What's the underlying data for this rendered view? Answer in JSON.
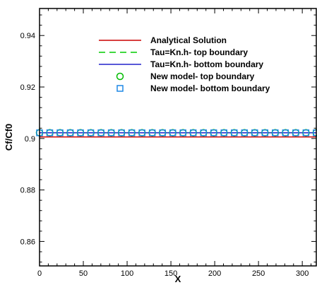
{
  "chart_data": {
    "type": "line",
    "xlabel": "X",
    "ylabel": "Cf/Cf0",
    "xlim": [
      0,
      316
    ],
    "ylim": [
      0.8505,
      0.9505
    ],
    "x_ticks": [
      0,
      50,
      100,
      150,
      200,
      250,
      300
    ],
    "y_ticks": [
      0.86,
      0.88,
      0.9,
      0.92,
      0.94
    ],
    "x_tick_labels": [
      "0",
      "50",
      "100",
      "150",
      "200",
      "250",
      "300"
    ],
    "y_tick_labels": [
      "0.86",
      "0.88",
      "0.9",
      "0.92",
      "0.94"
    ],
    "legend_position": "top-center",
    "series": [
      {
        "name": "Analytical Solution",
        "style": "line",
        "color": "#cc0000",
        "x": [
          0,
          316
        ],
        "values": [
          0.9006,
          0.9006
        ]
      },
      {
        "name": "Tau=Kn.h- top boundary",
        "style": "dashed",
        "color": "#00cc00",
        "x": [
          0,
          316
        ],
        "values": [
          0.9022,
          0.9022
        ]
      },
      {
        "name": "Tau=Kn.h- bottom boundary",
        "style": "line",
        "color": "#2222cc",
        "x": [
          0,
          316
        ],
        "values": [
          0.9022,
          0.9022
        ]
      },
      {
        "name": "New model- top boundary",
        "style": "circle",
        "color": "#00bb00",
        "x": [
          0,
          11.7,
          23.4,
          35.1,
          46.8,
          58.5,
          70.2,
          81.9,
          93.6,
          105.3,
          117,
          128.7,
          140.4,
          152.1,
          163.8,
          175.5,
          187.2,
          198.9,
          210.6,
          222.3,
          234,
          245.7,
          257.4,
          269.1,
          280.8,
          292.5,
          304.2,
          315.9
        ],
        "values": [
          0.9022,
          0.9022,
          0.9022,
          0.9022,
          0.9022,
          0.9022,
          0.9022,
          0.9022,
          0.9022,
          0.9022,
          0.9022,
          0.9022,
          0.9022,
          0.9022,
          0.9022,
          0.9022,
          0.9022,
          0.9022,
          0.9022,
          0.9022,
          0.9022,
          0.9022,
          0.9022,
          0.9022,
          0.9022,
          0.9022,
          0.9022,
          0.9022
        ]
      },
      {
        "name": "New model- bottom boundary",
        "style": "square",
        "color": "#1e88e5",
        "x": [
          0,
          11.7,
          23.4,
          35.1,
          46.8,
          58.5,
          70.2,
          81.9,
          93.6,
          105.3,
          117,
          128.7,
          140.4,
          152.1,
          163.8,
          175.5,
          187.2,
          198.9,
          210.6,
          222.3,
          234,
          245.7,
          257.4,
          269.1,
          280.8,
          292.5,
          304.2,
          315.9
        ],
        "values": [
          0.9022,
          0.9022,
          0.9022,
          0.9022,
          0.9022,
          0.9022,
          0.9022,
          0.9022,
          0.9022,
          0.9022,
          0.9022,
          0.9022,
          0.9022,
          0.9022,
          0.9022,
          0.9022,
          0.9022,
          0.9022,
          0.9022,
          0.9022,
          0.9022,
          0.9022,
          0.9022,
          0.9022,
          0.9022,
          0.9022,
          0.9022,
          0.9022
        ]
      }
    ]
  }
}
